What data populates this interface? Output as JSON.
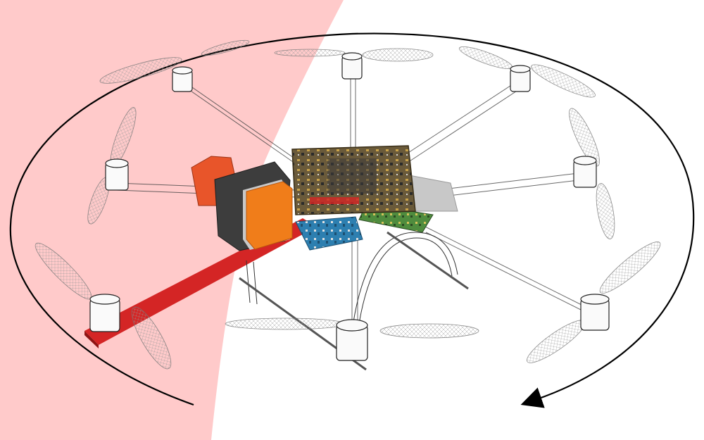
{
  "scene": {
    "subject": "octocopter",
    "rotor_count": 8,
    "highlighted_arm_color": "#d42525",
    "sweep_fill_color": "#ffb3b3",
    "rotation_arrow": "clockwise",
    "colors": {
      "board": "#5a4a2a",
      "module_blue": "#2d7fb0",
      "module_green": "#4f8c3e",
      "payload_orange": "#f07d1a",
      "payload_dark": "#3d3d3d",
      "wireframe": "#222222"
    }
  }
}
